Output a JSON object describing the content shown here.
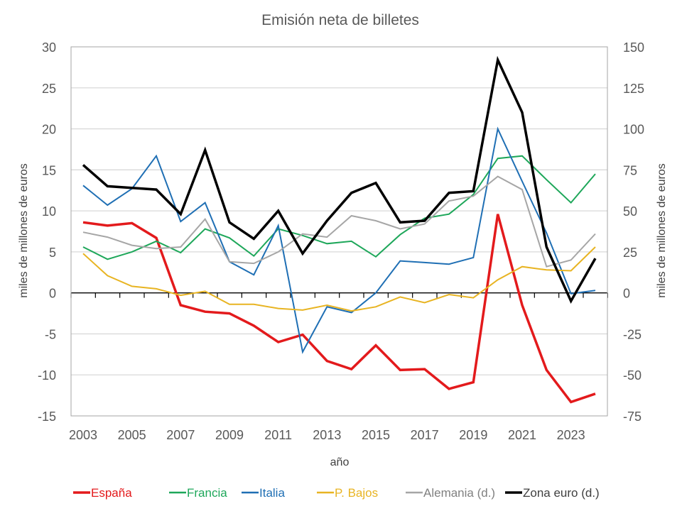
{
  "chart_data": {
    "type": "line",
    "title": "Emisión neta de billetes",
    "xlabel": "año",
    "ylabel": "miles de millones de euros",
    "ylabel_right": "miles de millones de euros",
    "ylim": [
      -15,
      30
    ],
    "ylim_right": [
      -75,
      150
    ],
    "yticks": [
      "30",
      "25",
      "20",
      "15",
      "10",
      "5",
      "0",
      "-5",
      "-10",
      "-15"
    ],
    "yticks_right": [
      "150",
      "125",
      "100",
      "75",
      "50",
      "25",
      "0",
      "-25",
      "-50",
      "-75"
    ],
    "ytick_values": [
      30,
      25,
      20,
      15,
      10,
      5,
      0,
      -5,
      -10,
      -15
    ],
    "x": [
      2003,
      2004,
      2005,
      2006,
      2007,
      2008,
      2009,
      2010,
      2011,
      2012,
      2013,
      2014,
      2015,
      2016,
      2017,
      2018,
      2019,
      2020,
      2021,
      2022,
      2023,
      2024
    ],
    "xtick_labels": [
      "2003",
      "2005",
      "2007",
      "2009",
      "2011",
      "2013",
      "2015",
      "2017",
      "2019",
      "2021",
      "2023"
    ],
    "grid": true,
    "legend_position": "bottom",
    "series": [
      {
        "name": "España",
        "axis": "left",
        "color": "#e31a1c",
        "width": "thick",
        "values": [
          8.6,
          8.2,
          8.5,
          6.7,
          -1.5,
          -2.3,
          -2.5,
          -4.0,
          -6.0,
          -5.1,
          -8.3,
          -9.3,
          -6.4,
          -9.4,
          -9.3,
          -11.7,
          -10.9,
          9.6,
          -1.5,
          -9.4,
          -13.3,
          -12.3
        ]
      },
      {
        "name": "Francia",
        "axis": "left",
        "color": "#1ea75a",
        "width": "thin",
        "values": [
          5.6,
          4.1,
          5.0,
          6.3,
          4.9,
          7.8,
          6.7,
          4.5,
          7.8,
          7.0,
          6.0,
          6.3,
          4.4,
          7.1,
          9.1,
          9.6,
          12.0,
          16.4,
          16.7,
          13.8,
          11.0,
          14.5
        ]
      },
      {
        "name": "Italia",
        "axis": "left",
        "color": "#1f6fb4",
        "width": "thin",
        "values": [
          13.1,
          10.7,
          12.7,
          16.7,
          8.7,
          11.0,
          3.8,
          2.2,
          8.2,
          -7.2,
          -1.7,
          -2.4,
          0.0,
          3.9,
          3.7,
          3.5,
          4.3,
          20.0,
          13.6,
          7.3,
          -0.1,
          0.3
        ]
      },
      {
        "name": "P. Bajos",
        "axis": "left",
        "color": "#e8b422",
        "width": "thin",
        "values": [
          4.8,
          2.1,
          0.8,
          0.5,
          -0.3,
          0.2,
          -1.4,
          -1.4,
          -1.9,
          -2.1,
          -1.5,
          -2.2,
          -1.7,
          -0.5,
          -1.2,
          -0.2,
          -0.6,
          1.6,
          3.2,
          2.8,
          2.7,
          5.6
        ]
      },
      {
        "name": "Alemania (d.)",
        "axis": "right",
        "color": "#a6a6a6",
        "width": "thin",
        "values": [
          37,
          34,
          29,
          27,
          28,
          45,
          19,
          18,
          25,
          36,
          34,
          47,
          44,
          39,
          42,
          56,
          59,
          71,
          63,
          16,
          20,
          36
        ]
      },
      {
        "name": "Zona euro (d.)",
        "axis": "right",
        "color": "#000000",
        "width": "thick",
        "values": [
          78,
          65,
          64,
          63,
          48,
          87,
          43,
          33,
          50,
          24,
          44,
          61,
          67,
          43,
          44,
          61,
          62,
          142,
          110,
          28,
          -5,
          21
        ]
      }
    ]
  }
}
